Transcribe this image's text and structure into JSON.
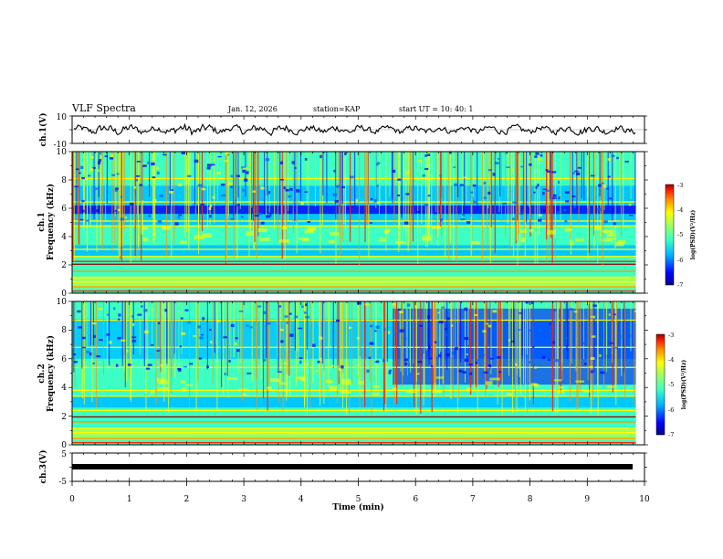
{
  "chart_data": {
    "type": "heatmap",
    "title": "VLF Spectra",
    "date": "Jan. 12, 2026",
    "station": "station=KAP",
    "start_ut": "start UT =  10: 40: 1",
    "xlabel": "Time (min)",
    "xlim": [
      0,
      10
    ],
    "data_end_min": 9.85,
    "x_ticks": [
      "0",
      "1",
      "2",
      "3",
      "4",
      "5",
      "6",
      "7",
      "8",
      "9",
      "10"
    ],
    "panels": [
      {
        "name": "ch1-waveform",
        "kind": "line",
        "ylabel": "ch.1(V)",
        "ylim": [
          -10,
          10
        ],
        "y_ticks": [
          "10",
          "-10"
        ],
        "description": "noisy waveform oscillating around 0 V, amplitude roughly 2-6 V"
      },
      {
        "name": "ch1-spectrogram",
        "kind": "heatmap",
        "ylabel_1": "ch.1",
        "ylabel_2": "Frequency (kHz)",
        "ylim": [
          0,
          10
        ],
        "y_ticks": [
          "0",
          "2",
          "4",
          "6",
          "8",
          "10"
        ],
        "colorbar": {
          "label": "log(PSD)(V²/Hz)",
          "range": [
            -7,
            -3
          ],
          "ticks": [
            "-3",
            "-4",
            "-5",
            "-6",
            "-7"
          ]
        }
      },
      {
        "name": "ch2-spectrogram",
        "kind": "heatmap",
        "ylabel_1": "ch.2",
        "ylabel_2": "Frequency (kHz)",
        "ylim": [
          0,
          10
        ],
        "y_ticks": [
          "0",
          "2",
          "4",
          "6",
          "8",
          "10"
        ],
        "colorbar": {
          "label": "log(PSD)(V²/Hz)",
          "range": [
            -7,
            -3
          ],
          "ticks": [
            "-3",
            "-4",
            "-5",
            "-6",
            "-7"
          ]
        }
      },
      {
        "name": "ch3-signal",
        "kind": "line",
        "ylabel": "ch.3(V)",
        "ylim": [
          -5,
          5
        ],
        "y_ticks": [
          "5",
          "-5"
        ],
        "value": 0,
        "description": "flat thick trace at about 0 V across whole interval"
      }
    ]
  },
  "colors": {
    "colormap": [
      "#00008f",
      "#0000ff",
      "#0060ff",
      "#00c8ff",
      "#3cffc3",
      "#a0ff5f",
      "#ffff00",
      "#ff9600",
      "#ff1e00",
      "#9b0000"
    ]
  }
}
